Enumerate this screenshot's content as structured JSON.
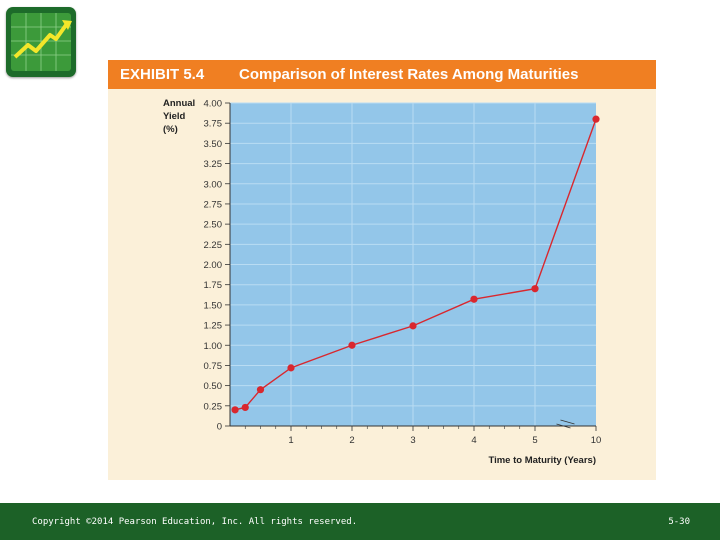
{
  "slide": {
    "exhibit_label": "EXHIBIT 5.4",
    "exhibit_title": "Comparison of Interest Rates Among Maturities",
    "copyright": "Copyright ©2014 Pearson Education, Inc. All rights reserved.",
    "page_number": "5-30"
  },
  "colors": {
    "title_bar": "#f07f22",
    "panel": "#fbf0d9",
    "plot_bg": "#93c6e9",
    "series": "#d9272e",
    "footer": "#1c6127"
  },
  "icons": {
    "logo": "growth-chart-icon"
  },
  "chart_data": {
    "type": "line",
    "ylabel": "Annual Yield (%)",
    "ylabel_lines": [
      "Annual",
      "Yield",
      "(%)"
    ],
    "xlabel": "Time to Maturity (Years)",
    "ylim": [
      0,
      4.0
    ],
    "y_ticks": [
      "0",
      "0.25",
      "0.50",
      "0.75",
      "1.00",
      "1.25",
      "1.50",
      "1.75",
      "2.00",
      "2.25",
      "2.50",
      "2.75",
      "3.00",
      "3.25",
      "3.50",
      "3.75",
      "4.00"
    ],
    "x_tick_labels": [
      "1",
      "2",
      "3",
      "4",
      "5",
      "10"
    ],
    "x_tick_values": [
      1,
      2,
      3,
      4,
      5,
      6
    ],
    "x_axis_break_between": [
      5,
      10
    ],
    "grid": true,
    "series": [
      {
        "x_actual": [
          0.083,
          0.25,
          0.5,
          1,
          2,
          3,
          4,
          5,
          10
        ],
        "x_axis_position": [
          0.083,
          0.25,
          0.5,
          1,
          2,
          3,
          4,
          5,
          6
        ],
        "y": [
          0.2,
          0.23,
          0.45,
          0.72,
          1.0,
          1.24,
          1.57,
          1.7,
          3.8
        ]
      }
    ]
  }
}
